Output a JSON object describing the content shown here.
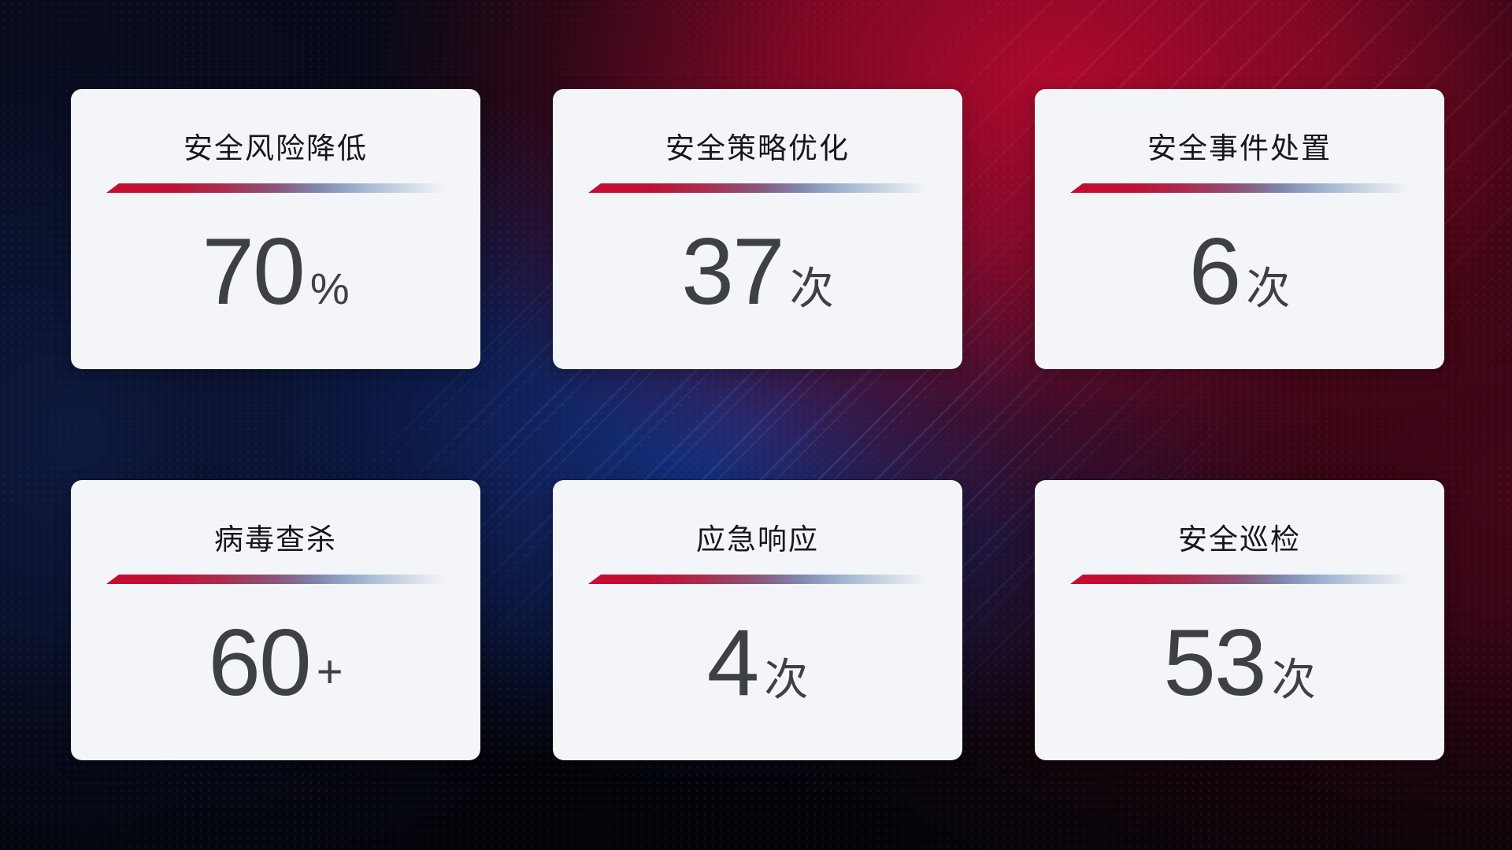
{
  "cards": [
    {
      "title": "安全风险降低",
      "value": "70",
      "unit": "%"
    },
    {
      "title": "安全策略优化",
      "value": "37",
      "unit": "次"
    },
    {
      "title": "安全事件处置",
      "value": "6",
      "unit": "次"
    },
    {
      "title": "病毒查杀",
      "value": "60",
      "unit": "+"
    },
    {
      "title": "应急响应",
      "value": "4",
      "unit": "次"
    },
    {
      "title": "安全巡检",
      "value": "53",
      "unit": "次"
    }
  ],
  "colors": {
    "card_background": "#f4f5f8",
    "title_color": "#15171c",
    "value_color": "#3d4046",
    "divider_red": "#c60c31",
    "divider_blue_fade": "#c6d2e2",
    "background_red_glow": "#b2092f",
    "background_blue_glow": "#183896",
    "background_base": "#05060d"
  }
}
